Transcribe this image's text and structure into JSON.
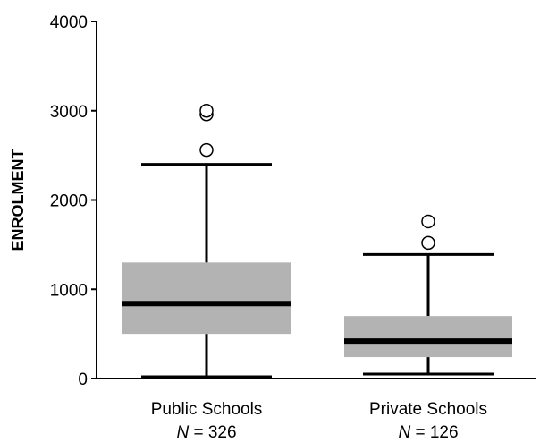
{
  "chart_data": {
    "type": "boxplot",
    "ylabel": "ENROLMENT",
    "xlabel": "",
    "ylim": [
      0,
      4000
    ],
    "yticks": [
      0,
      1000,
      2000,
      3000,
      4000
    ],
    "grid": false,
    "box_color": "#b3b3b3",
    "median_color": "#000000",
    "groups": [
      {
        "label": "Public Schools",
        "n_prefix": "N",
        "n_value": "= 326",
        "whisker_low": 20,
        "q1": 500,
        "median": 840,
        "q3": 1300,
        "whisker_high": 2400,
        "outliers": [
          2560,
          2960,
          3000
        ]
      },
      {
        "label": "Private Schools",
        "n_prefix": "N",
        "n_value": "= 126",
        "whisker_low": 50,
        "q1": 240,
        "median": 420,
        "q3": 700,
        "whisker_high": 1390,
        "outliers": [
          1520,
          1760
        ]
      }
    ]
  }
}
